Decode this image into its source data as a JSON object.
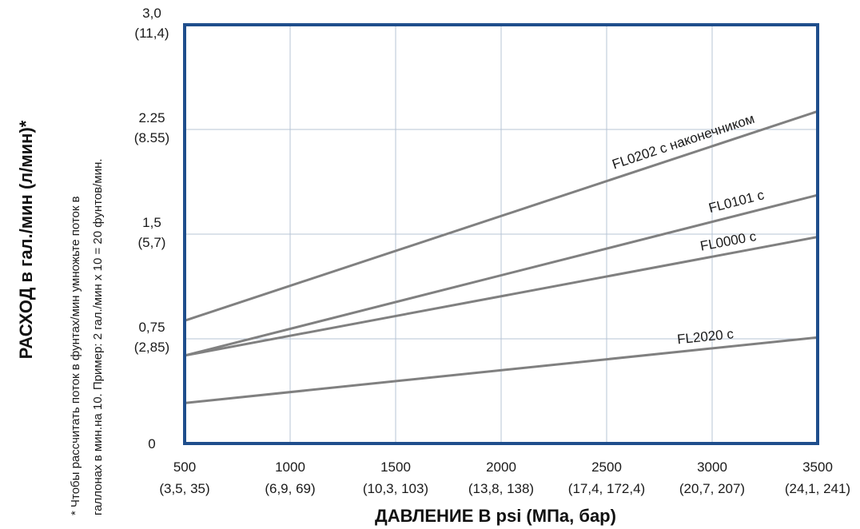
{
  "chart_data": {
    "type": "line",
    "xlabel": "ДАВЛЕНИЕ В psi (МПа, бар)",
    "ylabel": "РАСХОД в гал./мин (л/мин)*",
    "footnote_line1": "* Чтобы рассчитать поток в фунтах/мин умножьте поток в",
    "footnote_line2": "галлонах в мин.на 10. Пример: 2 гал./мин х 10 = 20 фунтов/мин.",
    "xlim": [
      500,
      3500
    ],
    "ylim": [
      0,
      3.0
    ],
    "grid": true,
    "x_ticks": [
      {
        "value": 500,
        "label1": "500",
        "label2": "(3,5, 35)"
      },
      {
        "value": 1000,
        "label1": "1000",
        "label2": "(6,9, 69)"
      },
      {
        "value": 1500,
        "label1": "1500",
        "label2": "(10,3, 103)"
      },
      {
        "value": 2000,
        "label1": "2000",
        "label2": "(13,8, 138)"
      },
      {
        "value": 2500,
        "label1": "2500",
        "label2": "(17,4, 172,4)"
      },
      {
        "value": 3000,
        "label1": "3000",
        "label2": "(20,7, 207)"
      },
      {
        "value": 3500,
        "label1": "3500",
        "label2": "(24,1, 241)"
      }
    ],
    "y_ticks": [
      {
        "value": 0,
        "label1": "0",
        "label2": ""
      },
      {
        "value": 0.75,
        "label1": "0,75",
        "label2": "(2,85)"
      },
      {
        "value": 1.5,
        "label1": "1,5",
        "label2": "(5,7)"
      },
      {
        "value": 2.25,
        "label1": "2.25",
        "label2": "(8.55)"
      },
      {
        "value": 3.0,
        "label1": "3,0",
        "label2": "(11,4)"
      }
    ],
    "series": [
      {
        "name": "FL0202 с наконечником",
        "x": [
          500,
          3500
        ],
        "y": [
          0.88,
          2.38
        ]
      },
      {
        "name": "FL0101 с",
        "x": [
          500,
          3500
        ],
        "y": [
          0.63,
          1.78
        ]
      },
      {
        "name": "FL0000 с",
        "x": [
          500,
          3500
        ],
        "y": [
          0.63,
          1.48
        ]
      },
      {
        "name": "FL2020 с",
        "x": [
          500,
          3500
        ],
        "y": [
          0.29,
          0.76
        ]
      }
    ],
    "colors": {
      "frame": "#1f4e8c",
      "grid": "#b7c4d6",
      "line": "#808080"
    }
  }
}
